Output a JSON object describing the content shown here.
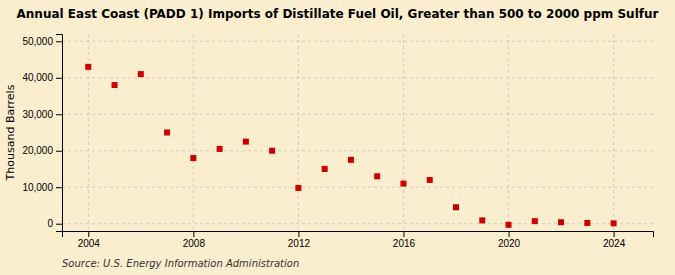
{
  "chart_data": {
    "type": "scatter",
    "title": "Annual East Coast (PADD 1) Imports of Distillate Fuel Oil, Greater than 500 to 2000 ppm Sulfur",
    "ylabel": "Thousand Barrels",
    "annotations": [
      "Source: U.S. Energy Information Administration"
    ],
    "color": "#cc0000",
    "marker": "square",
    "grid": true,
    "xlim": [
      2003.0,
      2025.5
    ],
    "ylim": [
      -2000,
      52000
    ],
    "xticks": [
      2004,
      2008,
      2012,
      2016,
      2020,
      2024
    ],
    "yticks": [
      0,
      {
        "value": 10000,
        "label": "10,000"
      },
      {
        "value": 20000,
        "label": "20,000"
      },
      {
        "value": 30000,
        "label": "30,000"
      },
      {
        "value": 40000,
        "label": "40,000"
      },
      {
        "value": 50000,
        "label": "50,000"
      }
    ],
    "x": [
      2004,
      2005,
      2006,
      2007,
      2008,
      2009,
      2010,
      2011,
      2012,
      2013,
      2014,
      2015,
      2016,
      2017,
      2018,
      2019,
      2020,
      2021,
      2022,
      2023,
      2024
    ],
    "values": [
      43000,
      38000,
      41000,
      25000,
      18000,
      20500,
      22500,
      20000,
      9800,
      15000,
      17500,
      13000,
      11000,
      12000,
      4500,
      900,
      -300,
      700,
      400,
      200,
      100
    ]
  }
}
